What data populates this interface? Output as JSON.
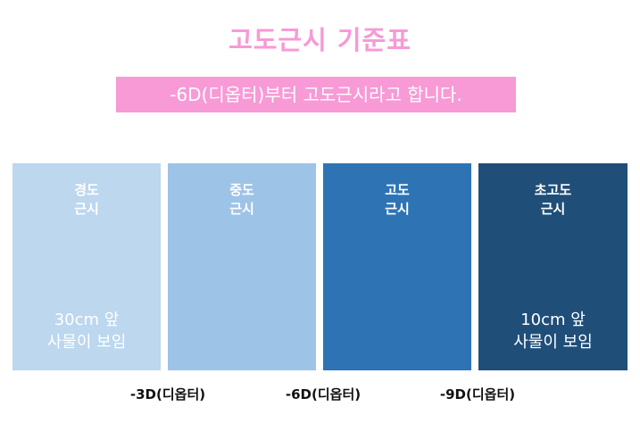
{
  "title": "고도근시 기준표",
  "banner": "-6D(디옵터)부터 고도근시라고 합니다.",
  "colors": {
    "accent_pink": "#f79ad6",
    "mild": "#bcd7ee",
    "moderate": "#9dc3e6",
    "high": "#2e74b5",
    "extreme": "#1f4e79"
  },
  "categories": [
    {
      "label_line1": "경도",
      "label_line2": "근시",
      "desc_line1": "30cm 앞",
      "desc_line2": "사물이 보임"
    },
    {
      "label_line1": "중도",
      "label_line2": "근시",
      "desc_line1": "",
      "desc_line2": ""
    },
    {
      "label_line1": "고도",
      "label_line2": "근시",
      "desc_line1": "",
      "desc_line2": ""
    },
    {
      "label_line1": "초고도",
      "label_line2": "근시",
      "desc_line1": "10cm 앞",
      "desc_line2": "사물이 보임"
    }
  ],
  "thresholds": [
    "-3D(디옵터)",
    "-6D(디옵터)",
    "-9D(디옵터)"
  ]
}
